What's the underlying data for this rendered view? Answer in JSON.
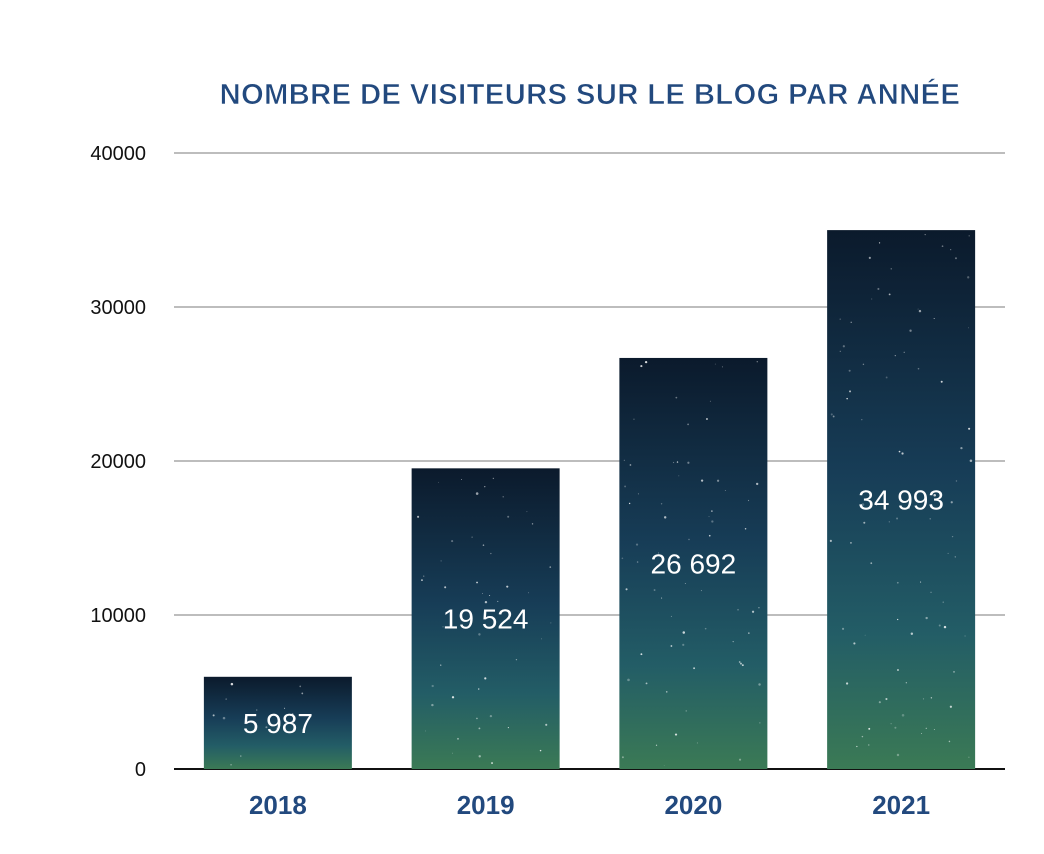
{
  "chart_data": {
    "type": "bar",
    "title": "NOMBRE DE VISITEURS SUR LE BLOG PAR ANNÉE",
    "xlabel": "",
    "ylabel": "",
    "categories": [
      "2018",
      "2019",
      "2020",
      "2021"
    ],
    "values": [
      5987,
      19524,
      26692,
      34993
    ],
    "data_labels": [
      "5 987",
      "19 524",
      "26 692",
      "34 993"
    ],
    "ylim": [
      0,
      40000
    ],
    "yticks": [
      0,
      10000,
      20000,
      30000,
      40000
    ],
    "ytick_labels": [
      "0",
      "10000",
      "20000",
      "30000",
      "40000"
    ],
    "grid": true,
    "legend": "none",
    "bar_fill": "starry-night-gradient",
    "colors": {
      "title": "#22497e",
      "xtick": "#22497e",
      "bar_top": "#0c1d30",
      "bar_mid": "#1b4a62",
      "bar_bottom": "#3f7f5a",
      "data_label": "#ffffff",
      "grid": "#bdbdbd"
    }
  }
}
